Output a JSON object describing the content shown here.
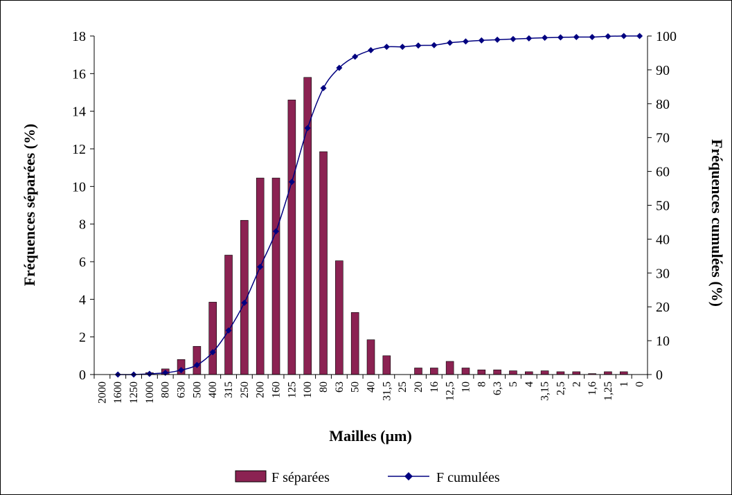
{
  "chart_data": {
    "type": "bar",
    "categories": [
      "2000",
      "1600",
      "1250",
      "1000",
      "800",
      "630",
      "500",
      "400",
      "315",
      "250",
      "200",
      "160",
      "125",
      "100",
      "80",
      "63",
      "50",
      "40",
      "31,5",
      "25",
      "20",
      "16",
      "12,5",
      "10",
      "8",
      "6,3",
      "5",
      "4",
      "3,15",
      "2,5",
      "2",
      "1,6",
      "1,25",
      "1",
      "0"
    ],
    "series": [
      {
        "name": "F séparées",
        "type": "bar",
        "axis": "left",
        "color": "#8B2252",
        "values": [
          0,
          0,
          0,
          0.1,
          0.3,
          0.8,
          1.5,
          3.85,
          6.35,
          8.2,
          10.45,
          10.45,
          14.6,
          15.8,
          11.85,
          6.05,
          3.3,
          1.85,
          1.0,
          0,
          0.35,
          0.35,
          0.7,
          0.35,
          0.25,
          0.25,
          0.2,
          0.15,
          0.2,
          0.15,
          0.15,
          0.05,
          0.15,
          0.15,
          0
        ]
      },
      {
        "name": "F cumulées",
        "type": "line",
        "axis": "right",
        "color": "#000080",
        "marker": "diamond",
        "values": [
          null,
          0,
          0,
          0.2,
          0.5,
          1.3,
          2.8,
          6.6,
          13.0,
          21.2,
          31.8,
          42.3,
          56.9,
          72.8,
          84.6,
          90.6,
          93.9,
          95.8,
          96.8,
          96.8,
          97.2,
          97.3,
          98.0,
          98.4,
          98.7,
          98.9,
          99.1,
          99.3,
          99.5,
          99.6,
          99.7,
          99.7,
          99.9,
          100.0,
          100.0
        ]
      }
    ],
    "xlabel": "Mailles (µm)",
    "ylabel": "Fréquences séparées (%)",
    "y2label": "Fréquences cumulées (%)",
    "ylim": [
      0,
      18
    ],
    "yticks": [
      0,
      2,
      4,
      6,
      8,
      10,
      12,
      14,
      16,
      18
    ],
    "y2lim": [
      0,
      100
    ],
    "y2ticks": [
      0,
      10,
      20,
      30,
      40,
      50,
      60,
      70,
      80,
      90,
      100
    ],
    "grid": false,
    "legend": "bottom-center"
  }
}
